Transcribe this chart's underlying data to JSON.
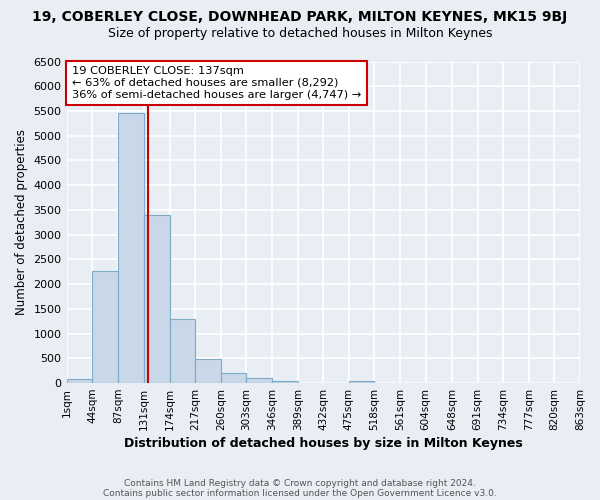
{
  "title_line1": "19, COBERLEY CLOSE, DOWNHEAD PARK, MILTON KEYNES, MK15 9BJ",
  "title_line2": "Size of property relative to detached houses in Milton Keynes",
  "xlabel": "Distribution of detached houses by size in Milton Keynes",
  "ylabel": "Number of detached properties",
  "bar_color": "#c8d8e8",
  "bar_edge_color": "#7eaac8",
  "bin_edges": [
    1,
    44,
    87,
    131,
    174,
    217,
    260,
    303,
    346,
    389,
    432,
    475,
    518,
    561,
    604,
    648,
    691,
    734,
    777,
    820,
    863
  ],
  "bin_labels": [
    "1sqm",
    "44sqm",
    "87sqm",
    "131sqm",
    "174sqm",
    "217sqm",
    "260sqm",
    "303sqm",
    "346sqm",
    "389sqm",
    "432sqm",
    "475sqm",
    "518sqm",
    "561sqm",
    "604sqm",
    "648sqm",
    "691sqm",
    "734sqm",
    "777sqm",
    "820sqm",
    "863sqm"
  ],
  "bar_heights": [
    75,
    2270,
    5450,
    3400,
    1300,
    490,
    195,
    95,
    40,
    0,
    0,
    45,
    0,
    0,
    0,
    0,
    0,
    0,
    0,
    0
  ],
  "ylim": [
    0,
    6500
  ],
  "yticks": [
    0,
    500,
    1000,
    1500,
    2000,
    2500,
    3000,
    3500,
    4000,
    4500,
    5000,
    5500,
    6000,
    6500
  ],
  "property_line_x": 137,
  "property_line_color": "#cc0000",
  "annotation_title": "19 COBERLEY CLOSE: 137sqm",
  "annotation_line1": "← 63% of detached houses are smaller (8,292)",
  "annotation_line2": "36% of semi-detached houses are larger (4,747) →",
  "annotation_box_facecolor": "#ffffff",
  "annotation_box_edgecolor": "#cc0000",
  "footer_line1": "Contains HM Land Registry data © Crown copyright and database right 2024.",
  "footer_line2": "Contains public sector information licensed under the Open Government Licence v3.0.",
  "fig_facecolor": "#e8eef4",
  "plot_facecolor": "#e8eef4",
  "grid_color": "#ffffff",
  "title_fontsize": 10,
  "subtitle_fontsize": 9
}
